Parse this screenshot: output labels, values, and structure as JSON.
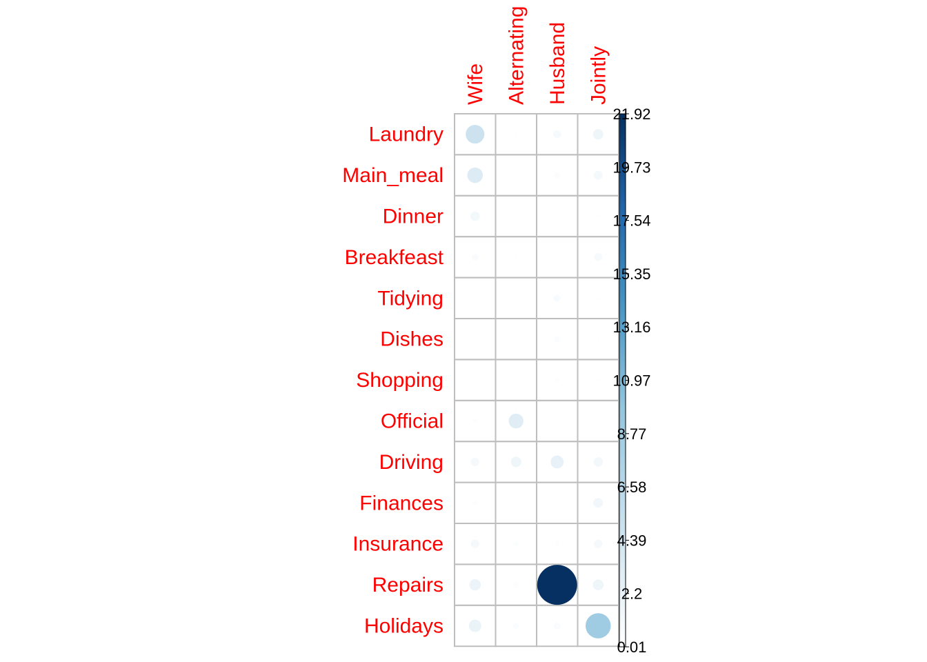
{
  "chart_data": {
    "type": "corrplot-circle",
    "title": "",
    "rows": [
      "Laundry",
      "Main_meal",
      "Dinner",
      "Breakfeast",
      "Tidying",
      "Dishes",
      "Shopping",
      "Official",
      "Driving",
      "Finances",
      "Insurance",
      "Repairs",
      "Holidays"
    ],
    "columns": [
      "Wife",
      "Alternating",
      "Husband",
      "Jointly"
    ],
    "values": [
      [
        4.8,
        0.1,
        0.9,
        1.5
      ],
      [
        3.3,
        0.0,
        0.5,
        1.1
      ],
      [
        1.2,
        0.0,
        0.2,
        0.2
      ],
      [
        0.6,
        0.2,
        0.1,
        0.9
      ],
      [
        0.0,
        0.0,
        0.7,
        0.2
      ],
      [
        0.0,
        0.05,
        0.5,
        0.2
      ],
      [
        0.0,
        0.0,
        0.3,
        0.2
      ],
      [
        0.3,
        3.0,
        0.05,
        0.1
      ],
      [
        1.0,
        1.5,
        2.3,
        1.2
      ],
      [
        0.3,
        0.0,
        0.0,
        1.3
      ],
      [
        1.0,
        0.4,
        0.3,
        1.0
      ],
      [
        1.8,
        0.4,
        21.92,
        1.6
      ],
      [
        2.1,
        0.5,
        0.6,
        8.7
      ]
    ],
    "legend": {
      "ticks": [
        "21.92",
        "19.73",
        "17.54",
        "15.35",
        "13.16",
        "10.97",
        "8.77",
        "6.58",
        "4.39",
        "2.2",
        "0.01"
      ],
      "min": 0.01,
      "max": 21.92
    },
    "colors": {
      "label": "#ff0000",
      "grid": "#bebebe",
      "scale": [
        "#ffffff",
        "#d1e5f0",
        "#92c5de",
        "#4393c3",
        "#2166ac",
        "#053061"
      ]
    }
  }
}
